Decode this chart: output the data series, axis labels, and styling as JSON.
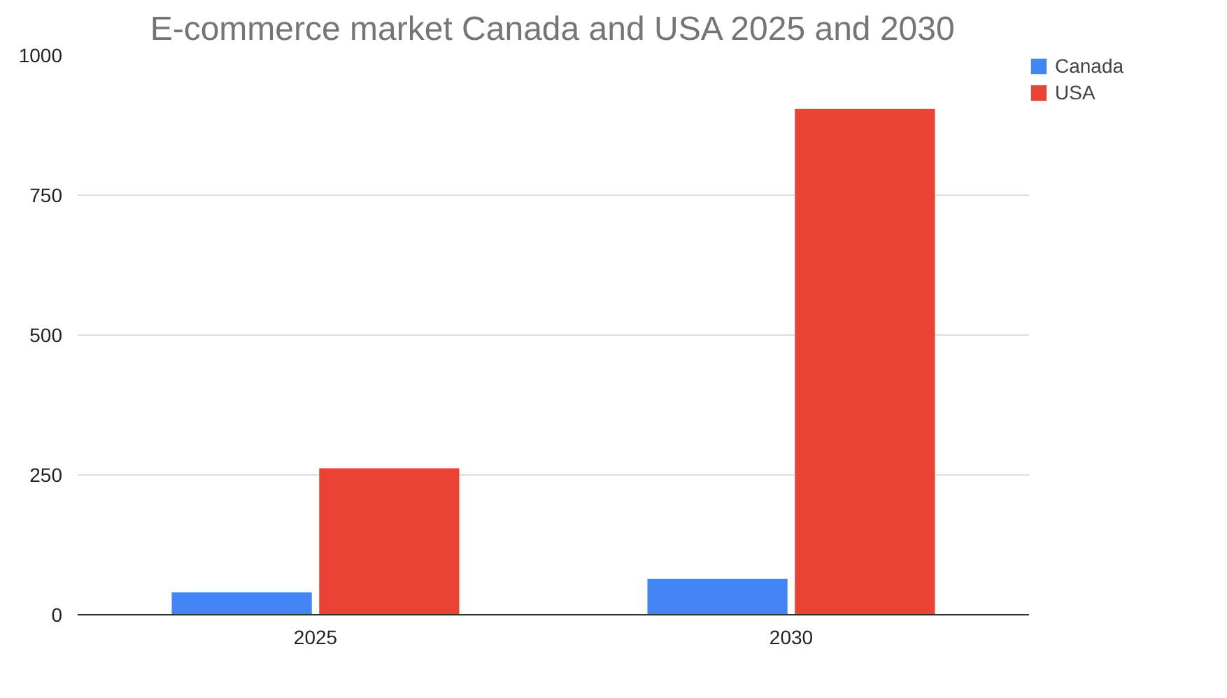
{
  "chart_data": {
    "type": "bar",
    "title": "E-commerce market Canada and USA 2025 and 2030",
    "categories": [
      "2025",
      "2030"
    ],
    "series": [
      {
        "name": "Canada",
        "color": "#4285f4",
        "values": [
          40,
          64
        ]
      },
      {
        "name": "USA",
        "color": "#ea4335",
        "values": [
          262,
          904
        ]
      }
    ],
    "ylim": [
      0,
      1000
    ],
    "yticks": [
      0,
      250,
      500,
      750,
      1000
    ],
    "grid": "y",
    "legend": "right"
  }
}
